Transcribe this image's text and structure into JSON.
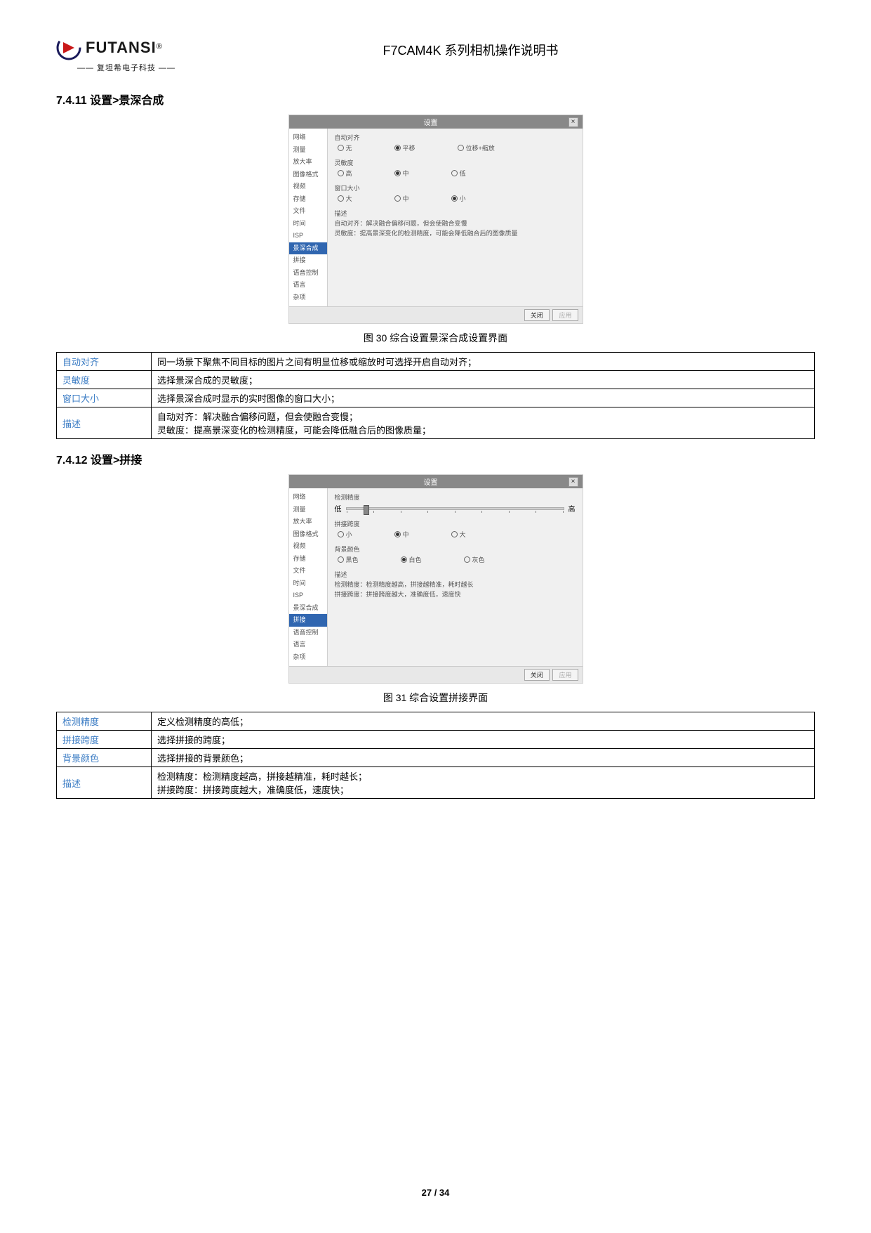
{
  "header": {
    "logo_text": "FUTANSI",
    "logo_sub": "—— 复坦希电子科技 ——",
    "logo_r": "®",
    "doc_title": "F7CAM4K 系列相机操作说明书"
  },
  "section1": {
    "num": "7.4.11",
    "prefix": "设置",
    "sep": ">",
    "name": "景深合成"
  },
  "dialog1": {
    "title": "设置",
    "sidebar": [
      "网络",
      "测量",
      "放大率",
      "图像格式",
      "视频",
      "存储",
      "文件",
      "时间",
      "ISP",
      "景深合成",
      "拼接",
      "语音控制",
      "语言",
      "杂项"
    ],
    "selected": "景深合成",
    "g1_label": "自动对齐",
    "g1_opts": [
      "无",
      "平移",
      "位移+缩放"
    ],
    "g1_selected": 1,
    "g2_label": "灵敏度",
    "g2_opts": [
      "高",
      "中",
      "低"
    ],
    "g2_selected": 1,
    "g3_label": "窗口大小",
    "g3_opts": [
      "大",
      "中",
      "小"
    ],
    "g3_selected": 2,
    "desc_label": "描述",
    "desc1": "自动对齐：解决融合偏移问题，但会使融合变慢",
    "desc2": "灵敏度：提高景深变化的检测精度，可能会降低融合后的图像质量",
    "btn_close": "关闭",
    "btn_apply": "应用"
  },
  "figcap1": "图 30 综合设置景深合成设置界面",
  "table1": {
    "r1k": "自动对齐",
    "r1v": "同一场景下聚焦不同目标的图片之间有明显位移或缩放时可选择开启自动对齐；",
    "r2k": "灵敏度",
    "r2v": "选择景深合成的灵敏度；",
    "r3k": "窗口大小",
    "r3v": "选择景深合成时显示的实时图像的窗口大小；",
    "r4k": "描述",
    "r4v1": "自动对齐：解决融合偏移问题，但会使融合变慢；",
    "r4v2": "灵敏度：提高景深变化的检测精度，可能会降低融合后的图像质量；"
  },
  "section2": {
    "num": "7.4.12",
    "prefix": "设置",
    "sep": ">",
    "name": "拼接"
  },
  "dialog2": {
    "title": "设置",
    "sidebar": [
      "网络",
      "测量",
      "放大率",
      "图像格式",
      "视频",
      "存储",
      "文件",
      "时间",
      "ISP",
      "景深合成",
      "拼接",
      "语音控制",
      "语言",
      "杂项"
    ],
    "selected": "拼接",
    "g1_label": "检测精度",
    "g1_low": "低",
    "g1_high": "高",
    "g2_label": "拼接跨度",
    "g2_opts": [
      "小",
      "中",
      "大"
    ],
    "g2_selected": 1,
    "g3_label": "背景颜色",
    "g3_opts": [
      "黑色",
      "白色",
      "灰色"
    ],
    "g3_selected": 1,
    "desc_label": "描述",
    "desc1": "检测精度：检测精度越高，拼接越精准，耗时越长",
    "desc2": "拼接跨度：拼接跨度越大，准确度低，速度快",
    "btn_close": "关闭",
    "btn_apply": "应用"
  },
  "figcap2": "图 31 综合设置拼接界面",
  "table2": {
    "r1k": "检测精度",
    "r1v": "定义检测精度的高低；",
    "r2k": "拼接跨度",
    "r2v": "选择拼接的跨度；",
    "r3k": "背景颜色",
    "r3v": "选择拼接的背景颜色；",
    "r4k": "描述",
    "r4v1": "检测精度：检测精度越高，拼接越精准，耗时越长；",
    "r4v2": "拼接跨度：拼接跨度越大，准确度低，速度快；"
  },
  "footer": {
    "page": "27",
    "sep": " / ",
    "total": "34"
  }
}
